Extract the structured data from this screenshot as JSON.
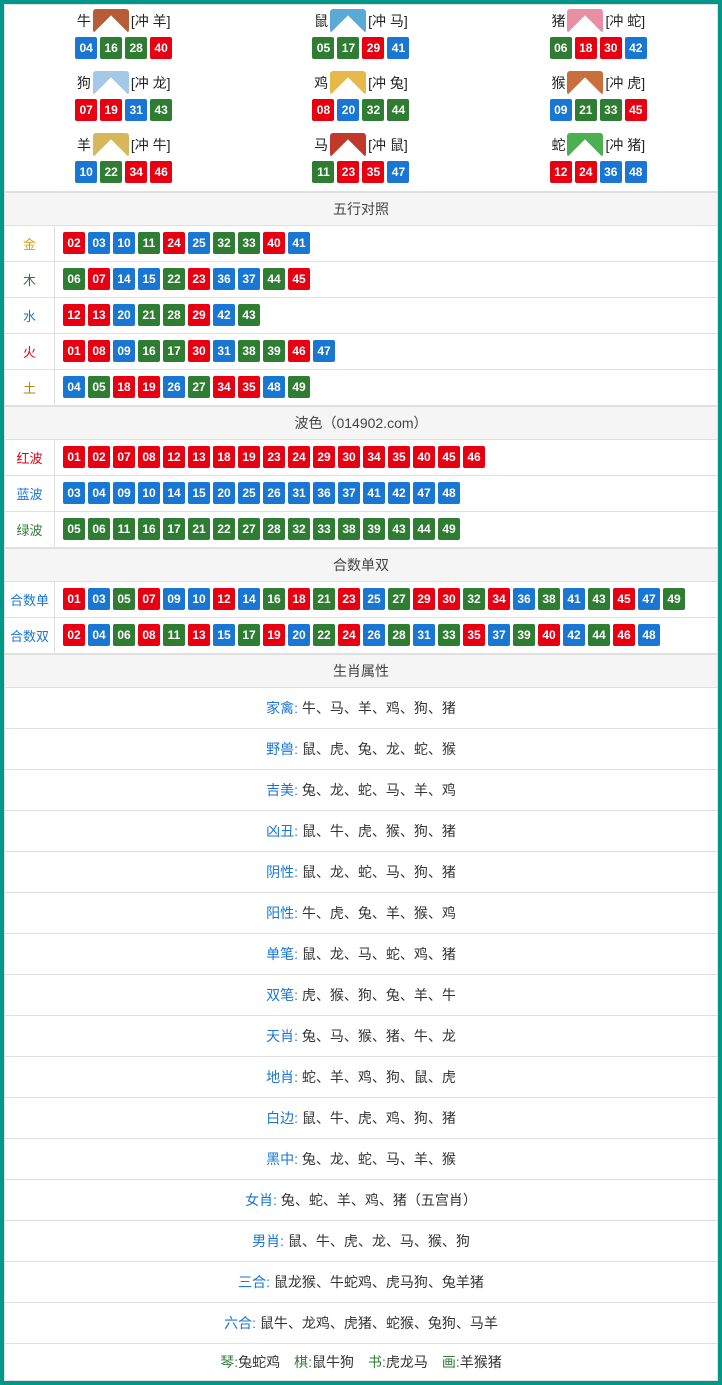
{
  "colors": {
    "red": "#e60012",
    "blue": "#1976d2",
    "green": "#2e7d32",
    "border": "#e0e0e0",
    "header_bg": "#f5f5f5",
    "page_bg": "#009688"
  },
  "zodiac_img_colors": {
    "牛": "#b85c38",
    "鼠": "#5aa9d6",
    "猪": "#e78fa5",
    "狗": "#a3c8e8",
    "鸡": "#e8b84a",
    "猴": "#c96f3b",
    "羊": "#d6b85a",
    "马": "#c0392b",
    "蛇": "#4caf50"
  },
  "zodiac": [
    {
      "name": "牛",
      "clash": "[冲 羊]",
      "balls": [
        {
          "n": "04",
          "c": "blue"
        },
        {
          "n": "16",
          "c": "green"
        },
        {
          "n": "28",
          "c": "green"
        },
        {
          "n": "40",
          "c": "red"
        }
      ]
    },
    {
      "name": "鼠",
      "clash": "[冲 马]",
      "balls": [
        {
          "n": "05",
          "c": "green"
        },
        {
          "n": "17",
          "c": "green"
        },
        {
          "n": "29",
          "c": "red"
        },
        {
          "n": "41",
          "c": "blue"
        }
      ]
    },
    {
      "name": "猪",
      "clash": "[冲 蛇]",
      "balls": [
        {
          "n": "06",
          "c": "green"
        },
        {
          "n": "18",
          "c": "red"
        },
        {
          "n": "30",
          "c": "red"
        },
        {
          "n": "42",
          "c": "blue"
        }
      ]
    },
    {
      "name": "狗",
      "clash": "[冲 龙]",
      "balls": [
        {
          "n": "07",
          "c": "red"
        },
        {
          "n": "19",
          "c": "red"
        },
        {
          "n": "31",
          "c": "blue"
        },
        {
          "n": "43",
          "c": "green"
        }
      ]
    },
    {
      "name": "鸡",
      "clash": "[冲 兔]",
      "balls": [
        {
          "n": "08",
          "c": "red"
        },
        {
          "n": "20",
          "c": "blue"
        },
        {
          "n": "32",
          "c": "green"
        },
        {
          "n": "44",
          "c": "green"
        }
      ]
    },
    {
      "name": "猴",
      "clash": "[冲 虎]",
      "balls": [
        {
          "n": "09",
          "c": "blue"
        },
        {
          "n": "21",
          "c": "green"
        },
        {
          "n": "33",
          "c": "green"
        },
        {
          "n": "45",
          "c": "red"
        }
      ]
    },
    {
      "name": "羊",
      "clash": "[冲 牛]",
      "balls": [
        {
          "n": "10",
          "c": "blue"
        },
        {
          "n": "22",
          "c": "green"
        },
        {
          "n": "34",
          "c": "red"
        },
        {
          "n": "46",
          "c": "red"
        }
      ]
    },
    {
      "name": "马",
      "clash": "[冲 鼠]",
      "balls": [
        {
          "n": "11",
          "c": "green"
        },
        {
          "n": "23",
          "c": "red"
        },
        {
          "n": "35",
          "c": "red"
        },
        {
          "n": "47",
          "c": "blue"
        }
      ]
    },
    {
      "name": "蛇",
      "clash": "[冲 猪]",
      "balls": [
        {
          "n": "12",
          "c": "red"
        },
        {
          "n": "24",
          "c": "red"
        },
        {
          "n": "36",
          "c": "blue"
        },
        {
          "n": "48",
          "c": "blue"
        }
      ]
    }
  ],
  "sections": {
    "wuxing_header": "五行对照",
    "bose_header": "波色（014902.com）",
    "heshu_header": "合数单双",
    "shuxing_header": "生肖属性"
  },
  "wuxing": [
    {
      "label": "金",
      "cls": "lbl-gold",
      "balls": [
        {
          "n": "02",
          "c": "red"
        },
        {
          "n": "03",
          "c": "blue"
        },
        {
          "n": "10",
          "c": "blue"
        },
        {
          "n": "11",
          "c": "green"
        },
        {
          "n": "24",
          "c": "red"
        },
        {
          "n": "25",
          "c": "blue"
        },
        {
          "n": "32",
          "c": "green"
        },
        {
          "n": "33",
          "c": "green"
        },
        {
          "n": "40",
          "c": "red"
        },
        {
          "n": "41",
          "c": "blue"
        }
      ]
    },
    {
      "label": "木",
      "cls": "lbl-wood",
      "balls": [
        {
          "n": "06",
          "c": "green"
        },
        {
          "n": "07",
          "c": "red"
        },
        {
          "n": "14",
          "c": "blue"
        },
        {
          "n": "15",
          "c": "blue"
        },
        {
          "n": "22",
          "c": "green"
        },
        {
          "n": "23",
          "c": "red"
        },
        {
          "n": "36",
          "c": "blue"
        },
        {
          "n": "37",
          "c": "blue"
        },
        {
          "n": "44",
          "c": "green"
        },
        {
          "n": "45",
          "c": "red"
        }
      ]
    },
    {
      "label": "水",
      "cls": "lbl-water",
      "balls": [
        {
          "n": "12",
          "c": "red"
        },
        {
          "n": "13",
          "c": "red"
        },
        {
          "n": "20",
          "c": "blue"
        },
        {
          "n": "21",
          "c": "green"
        },
        {
          "n": "28",
          "c": "green"
        },
        {
          "n": "29",
          "c": "red"
        },
        {
          "n": "42",
          "c": "blue"
        },
        {
          "n": "43",
          "c": "green"
        }
      ]
    },
    {
      "label": "火",
      "cls": "lbl-fire",
      "balls": [
        {
          "n": "01",
          "c": "red"
        },
        {
          "n": "08",
          "c": "red"
        },
        {
          "n": "09",
          "c": "blue"
        },
        {
          "n": "16",
          "c": "green"
        },
        {
          "n": "17",
          "c": "green"
        },
        {
          "n": "30",
          "c": "red"
        },
        {
          "n": "31",
          "c": "blue"
        },
        {
          "n": "38",
          "c": "green"
        },
        {
          "n": "39",
          "c": "green"
        },
        {
          "n": "46",
          "c": "red"
        },
        {
          "n": "47",
          "c": "blue"
        }
      ]
    },
    {
      "label": "土",
      "cls": "lbl-earth",
      "balls": [
        {
          "n": "04",
          "c": "blue"
        },
        {
          "n": "05",
          "c": "green"
        },
        {
          "n": "18",
          "c": "red"
        },
        {
          "n": "19",
          "c": "red"
        },
        {
          "n": "26",
          "c": "blue"
        },
        {
          "n": "27",
          "c": "green"
        },
        {
          "n": "34",
          "c": "red"
        },
        {
          "n": "35",
          "c": "red"
        },
        {
          "n": "48",
          "c": "blue"
        },
        {
          "n": "49",
          "c": "green"
        }
      ]
    }
  ],
  "bose": [
    {
      "label": "红波",
      "cls": "lbl-red",
      "balls": [
        {
          "n": "01",
          "c": "red"
        },
        {
          "n": "02",
          "c": "red"
        },
        {
          "n": "07",
          "c": "red"
        },
        {
          "n": "08",
          "c": "red"
        },
        {
          "n": "12",
          "c": "red"
        },
        {
          "n": "13",
          "c": "red"
        },
        {
          "n": "18",
          "c": "red"
        },
        {
          "n": "19",
          "c": "red"
        },
        {
          "n": "23",
          "c": "red"
        },
        {
          "n": "24",
          "c": "red"
        },
        {
          "n": "29",
          "c": "red"
        },
        {
          "n": "30",
          "c": "red"
        },
        {
          "n": "34",
          "c": "red"
        },
        {
          "n": "35",
          "c": "red"
        },
        {
          "n": "40",
          "c": "red"
        },
        {
          "n": "45",
          "c": "red"
        },
        {
          "n": "46",
          "c": "red"
        }
      ]
    },
    {
      "label": "蓝波",
      "cls": "lbl-blue",
      "balls": [
        {
          "n": "03",
          "c": "blue"
        },
        {
          "n": "04",
          "c": "blue"
        },
        {
          "n": "09",
          "c": "blue"
        },
        {
          "n": "10",
          "c": "blue"
        },
        {
          "n": "14",
          "c": "blue"
        },
        {
          "n": "15",
          "c": "blue"
        },
        {
          "n": "20",
          "c": "blue"
        },
        {
          "n": "25",
          "c": "blue"
        },
        {
          "n": "26",
          "c": "blue"
        },
        {
          "n": "31",
          "c": "blue"
        },
        {
          "n": "36",
          "c": "blue"
        },
        {
          "n": "37",
          "c": "blue"
        },
        {
          "n": "41",
          "c": "blue"
        },
        {
          "n": "42",
          "c": "blue"
        },
        {
          "n": "47",
          "c": "blue"
        },
        {
          "n": "48",
          "c": "blue"
        }
      ]
    },
    {
      "label": "绿波",
      "cls": "lbl-green",
      "balls": [
        {
          "n": "05",
          "c": "green"
        },
        {
          "n": "06",
          "c": "green"
        },
        {
          "n": "11",
          "c": "green"
        },
        {
          "n": "16",
          "c": "green"
        },
        {
          "n": "17",
          "c": "green"
        },
        {
          "n": "21",
          "c": "green"
        },
        {
          "n": "22",
          "c": "green"
        },
        {
          "n": "27",
          "c": "green"
        },
        {
          "n": "28",
          "c": "green"
        },
        {
          "n": "32",
          "c": "green"
        },
        {
          "n": "33",
          "c": "green"
        },
        {
          "n": "38",
          "c": "green"
        },
        {
          "n": "39",
          "c": "green"
        },
        {
          "n": "43",
          "c": "green"
        },
        {
          "n": "44",
          "c": "green"
        },
        {
          "n": "49",
          "c": "green"
        }
      ]
    }
  ],
  "heshu": [
    {
      "label": "合数单",
      "cls": "lbl-blue",
      "balls": [
        {
          "n": "01",
          "c": "red"
        },
        {
          "n": "03",
          "c": "blue"
        },
        {
          "n": "05",
          "c": "green"
        },
        {
          "n": "07",
          "c": "red"
        },
        {
          "n": "09",
          "c": "blue"
        },
        {
          "n": "10",
          "c": "blue"
        },
        {
          "n": "12",
          "c": "red"
        },
        {
          "n": "14",
          "c": "blue"
        },
        {
          "n": "16",
          "c": "green"
        },
        {
          "n": "18",
          "c": "red"
        },
        {
          "n": "21",
          "c": "green"
        },
        {
          "n": "23",
          "c": "red"
        },
        {
          "n": "25",
          "c": "blue"
        },
        {
          "n": "27",
          "c": "green"
        },
        {
          "n": "29",
          "c": "red"
        },
        {
          "n": "30",
          "c": "red"
        },
        {
          "n": "32",
          "c": "green"
        },
        {
          "n": "34",
          "c": "red"
        },
        {
          "n": "36",
          "c": "blue"
        },
        {
          "n": "38",
          "c": "green"
        },
        {
          "n": "41",
          "c": "blue"
        },
        {
          "n": "43",
          "c": "green"
        },
        {
          "n": "45",
          "c": "red"
        },
        {
          "n": "47",
          "c": "blue"
        },
        {
          "n": "49",
          "c": "green"
        }
      ]
    },
    {
      "label": "合数双",
      "cls": "lbl-blue",
      "balls": [
        {
          "n": "02",
          "c": "red"
        },
        {
          "n": "04",
          "c": "blue"
        },
        {
          "n": "06",
          "c": "green"
        },
        {
          "n": "08",
          "c": "red"
        },
        {
          "n": "11",
          "c": "green"
        },
        {
          "n": "13",
          "c": "red"
        },
        {
          "n": "15",
          "c": "blue"
        },
        {
          "n": "17",
          "c": "green"
        },
        {
          "n": "19",
          "c": "red"
        },
        {
          "n": "20",
          "c": "blue"
        },
        {
          "n": "22",
          "c": "green"
        },
        {
          "n": "24",
          "c": "red"
        },
        {
          "n": "26",
          "c": "blue"
        },
        {
          "n": "28",
          "c": "green"
        },
        {
          "n": "31",
          "c": "blue"
        },
        {
          "n": "33",
          "c": "green"
        },
        {
          "n": "35",
          "c": "red"
        },
        {
          "n": "37",
          "c": "blue"
        },
        {
          "n": "39",
          "c": "green"
        },
        {
          "n": "40",
          "c": "red"
        },
        {
          "n": "42",
          "c": "blue"
        },
        {
          "n": "44",
          "c": "green"
        },
        {
          "n": "46",
          "c": "red"
        },
        {
          "n": "48",
          "c": "blue"
        }
      ]
    }
  ],
  "shuxing": [
    {
      "key": "家禽",
      "val": "牛、马、羊、鸡、狗、猪"
    },
    {
      "key": "野兽",
      "val": "鼠、虎、兔、龙、蛇、猴"
    },
    {
      "key": "吉美",
      "val": "兔、龙、蛇、马、羊、鸡"
    },
    {
      "key": "凶丑",
      "val": "鼠、牛、虎、猴、狗、猪"
    },
    {
      "key": "阴性",
      "val": "鼠、龙、蛇、马、狗、猪"
    },
    {
      "key": "阳性",
      "val": "牛、虎、兔、羊、猴、鸡"
    },
    {
      "key": "单笔",
      "val": "鼠、龙、马、蛇、鸡、猪"
    },
    {
      "key": "双笔",
      "val": "虎、猴、狗、兔、羊、牛"
    },
    {
      "key": "天肖",
      "val": "兔、马、猴、猪、牛、龙"
    },
    {
      "key": "地肖",
      "val": "蛇、羊、鸡、狗、鼠、虎"
    },
    {
      "key": "白边",
      "val": "鼠、牛、虎、鸡、狗、猪"
    },
    {
      "key": "黑中",
      "val": "兔、龙、蛇、马、羊、猴"
    },
    {
      "key": "女肖",
      "val": "兔、蛇、羊、鸡、猪（五宫肖）"
    },
    {
      "key": "男肖",
      "val": "鼠、牛、虎、龙、马、猴、狗"
    },
    {
      "key": "三合",
      "val": "鼠龙猴、牛蛇鸡、虎马狗、兔羊猪"
    },
    {
      "key": "六合",
      "val": "鼠牛、龙鸡、虎猪、蛇猴、兔狗、马羊"
    }
  ],
  "lastrow": [
    {
      "key": "琴:",
      "val": "兔蛇鸡"
    },
    {
      "key": "棋:",
      "val": "鼠牛狗"
    },
    {
      "key": "书:",
      "val": "虎龙马"
    },
    {
      "key": "画:",
      "val": "羊猴猪"
    }
  ]
}
